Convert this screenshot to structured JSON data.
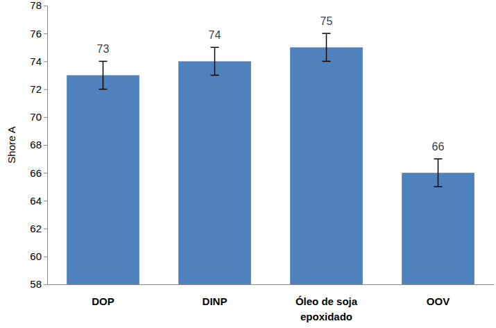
{
  "chart_data": {
    "type": "bar",
    "y_label": "Shore A",
    "categories": [
      "DOP",
      "DINP",
      "Óleo de soja epoxidado",
      "OOV"
    ],
    "values": [
      73,
      74,
      75,
      66
    ],
    "errors": [
      1,
      1,
      1,
      1
    ],
    "color": "#4f81bd",
    "ylim": [
      58,
      78
    ],
    "yticks": [
      58,
      60,
      62,
      64,
      66,
      68,
      70,
      72,
      74,
      76,
      78
    ],
    "grid": false,
    "data_labels": true
  }
}
